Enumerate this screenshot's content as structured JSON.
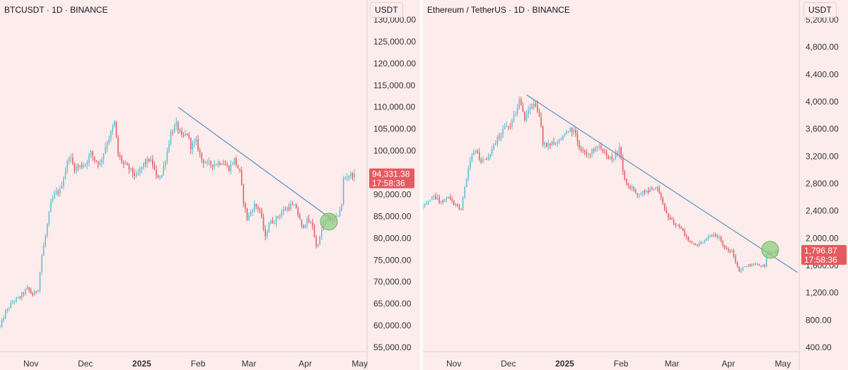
{
  "chart_data": [
    {
      "type": "candlestick",
      "title": "BTCUSDT · 1D · BINANCE",
      "ylabel": "USDT",
      "ylim": [
        50000,
        133000
      ],
      "yticks": [
        {
          "v": 130000,
          "label": "130,000.00"
        },
        {
          "v": 125000,
          "label": "125,000.00"
        },
        {
          "v": 120000,
          "label": "120,000.00"
        },
        {
          "v": 115000,
          "label": "115,000.00"
        },
        {
          "v": 110000,
          "label": "110,000.00"
        },
        {
          "v": 105000,
          "label": "105,000.00"
        },
        {
          "v": 100000,
          "label": "100,000.00"
        },
        {
          "v": 95000,
          "label": "95,000.00"
        },
        {
          "v": 90000,
          "label": "90,000.00"
        },
        {
          "v": 85000,
          "label": "85,000.00"
        },
        {
          "v": 80000,
          "label": "80,000.00"
        },
        {
          "v": 75000,
          "label": "75,000.00"
        },
        {
          "v": 70000,
          "label": "70,000.00"
        },
        {
          "v": 65000,
          "label": "65,000.00"
        },
        {
          "v": 60000,
          "label": "60,000.00"
        },
        {
          "v": 55000,
          "label": "55,000.00"
        }
      ],
      "x_start": "2024-10-15",
      "x_end": "2025-05-05",
      "xticks": [
        {
          "date": "2024-11-01",
          "label": "Nov",
          "bold": false
        },
        {
          "date": "2024-12-01",
          "label": "Dec",
          "bold": false
        },
        {
          "date": "2025-01-01",
          "label": "2025",
          "bold": true
        },
        {
          "date": "2025-02-01",
          "label": "Feb",
          "bold": false
        },
        {
          "date": "2025-03-01",
          "label": "Mar",
          "bold": false
        },
        {
          "date": "2025-04-01",
          "label": "Apr",
          "bold": false
        },
        {
          "date": "2025-05-01",
          "label": "May",
          "bold": false
        }
      ],
      "path": [
        [
          "2024-10-15",
          59800
        ],
        [
          "2024-10-18",
          63000
        ],
        [
          "2024-10-22",
          65500
        ],
        [
          "2024-10-26",
          66500
        ],
        [
          "2024-10-30",
          68500
        ],
        [
          "2024-11-02",
          67000
        ],
        [
          "2024-11-05",
          68500
        ],
        [
          "2024-11-07",
          76000
        ],
        [
          "2024-11-09",
          80500
        ],
        [
          "2024-11-12",
          88000
        ],
        [
          "2024-11-14",
          90000
        ],
        [
          "2024-11-17",
          91000
        ],
        [
          "2024-11-20",
          95500
        ],
        [
          "2024-11-22",
          99000
        ],
        [
          "2024-11-25",
          96000
        ],
        [
          "2024-11-28",
          96500
        ],
        [
          "2024-12-01",
          97000
        ],
        [
          "2024-12-04",
          99500
        ],
        [
          "2024-12-06",
          98000
        ],
        [
          "2024-12-09",
          97000
        ],
        [
          "2024-12-12",
          101000
        ],
        [
          "2024-12-15",
          104000
        ],
        [
          "2024-12-17",
          106500
        ],
        [
          "2024-12-19",
          99000
        ],
        [
          "2024-12-22",
          97000
        ],
        [
          "2024-12-26",
          95500
        ],
        [
          "2024-12-29",
          94000
        ],
        [
          "2025-01-02",
          97000
        ],
        [
          "2025-01-05",
          98000
        ],
        [
          "2025-01-07",
          97000
        ],
        [
          "2025-01-09",
          94000
        ],
        [
          "2025-01-12",
          94500
        ],
        [
          "2025-01-15",
          100000
        ],
        [
          "2025-01-17",
          104000
        ],
        [
          "2025-01-20",
          106000
        ],
        [
          "2025-01-23",
          103000
        ],
        [
          "2025-01-26",
          104000
        ],
        [
          "2025-01-28",
          101000
        ],
        [
          "2025-01-31",
          102000
        ],
        [
          "2025-02-03",
          98000
        ],
        [
          "2025-02-06",
          97000
        ],
        [
          "2025-02-10",
          97000
        ],
        [
          "2025-02-14",
          97500
        ],
        [
          "2025-02-18",
          96000
        ],
        [
          "2025-02-21",
          98000
        ],
        [
          "2025-02-24",
          95000
        ],
        [
          "2025-02-26",
          88500
        ],
        [
          "2025-02-28",
          84500
        ],
        [
          "2025-03-02",
          86000
        ],
        [
          "2025-03-04",
          87500
        ],
        [
          "2025-03-07",
          86500
        ],
        [
          "2025-03-10",
          80000
        ],
        [
          "2025-03-12",
          83500
        ],
        [
          "2025-03-15",
          84000
        ],
        [
          "2025-03-19",
          86000
        ],
        [
          "2025-03-24",
          87500
        ],
        [
          "2025-03-27",
          87000
        ],
        [
          "2025-03-30",
          82500
        ],
        [
          "2025-04-02",
          84000
        ],
        [
          "2025-04-05",
          83000
        ],
        [
          "2025-04-07",
          78000
        ],
        [
          "2025-04-09",
          80000
        ],
        [
          "2025-04-11",
          83500
        ],
        [
          "2025-04-14",
          84500
        ],
        [
          "2025-04-18",
          84500
        ],
        [
          "2025-04-21",
          87500
        ],
        [
          "2025-04-22",
          93500
        ],
        [
          "2025-04-25",
          94500
        ],
        [
          "2025-04-28",
          94300
        ]
      ],
      "current_price": 94331.38,
      "current_price_label": "94,331.38",
      "countdown": "17:58:36",
      "trendline": [
        [
          "2025-01-21",
          110000
        ],
        [
          "2025-04-15",
          84500
        ]
      ],
      "marker": {
        "date": "2025-04-14",
        "value": 83800
      },
      "colors": {
        "up": "#5bbfcf",
        "down": "#e35a62",
        "trend": "#5a8fbf",
        "marker": "#8ccf7f",
        "label": "#e45a5f"
      }
    },
    {
      "type": "candlestick",
      "title": "Ethereum / TetherUS · 1D · BINANCE",
      "ylabel": "USDT",
      "ylim": [
        200,
        5500
      ],
      "yticks": [
        {
          "v": 5200,
          "label": "5,200.00"
        },
        {
          "v": 4800,
          "label": "4,800.00"
        },
        {
          "v": 4400,
          "label": "4,400.00"
        },
        {
          "v": 4000,
          "label": "4,000.00"
        },
        {
          "v": 3600,
          "label": "3,600.00"
        },
        {
          "v": 3200,
          "label": "3,200.00"
        },
        {
          "v": 2800,
          "label": "2,800.00"
        },
        {
          "v": 2400,
          "label": "2,400.00"
        },
        {
          "v": 2000,
          "label": "2,000.00"
        },
        {
          "v": 1600,
          "label": "1,600.00"
        },
        {
          "v": 1200,
          "label": "1,200.00"
        },
        {
          "v": 800,
          "label": "800.00"
        },
        {
          "v": 400,
          "label": "400.00"
        }
      ],
      "x_start": "2024-10-15",
      "x_end": "2025-05-10",
      "xticks": [
        {
          "date": "2024-11-01",
          "label": "Nov",
          "bold": false
        },
        {
          "date": "2024-12-01",
          "label": "Dec",
          "bold": false
        },
        {
          "date": "2025-01-01",
          "label": "2025",
          "bold": true
        },
        {
          "date": "2025-02-01",
          "label": "Feb",
          "bold": false
        },
        {
          "date": "2025-03-01",
          "label": "Mar",
          "bold": false
        },
        {
          "date": "2025-04-01",
          "label": "Apr",
          "bold": false
        },
        {
          "date": "2025-05-01",
          "label": "May",
          "bold": false
        }
      ],
      "path": [
        [
          "2024-10-15",
          2450
        ],
        [
          "2024-10-18",
          2550
        ],
        [
          "2024-10-21",
          2620
        ],
        [
          "2024-10-25",
          2520
        ],
        [
          "2024-10-29",
          2600
        ],
        [
          "2024-11-02",
          2480
        ],
        [
          "2024-11-05",
          2420
        ],
        [
          "2024-11-07",
          2750
        ],
        [
          "2024-11-10",
          3150
        ],
        [
          "2024-11-13",
          3300
        ],
        [
          "2024-11-16",
          3100
        ],
        [
          "2024-11-19",
          3150
        ],
        [
          "2024-11-22",
          3300
        ],
        [
          "2024-11-25",
          3450
        ],
        [
          "2024-11-28",
          3600
        ],
        [
          "2024-12-02",
          3650
        ],
        [
          "2024-12-05",
          3850
        ],
        [
          "2024-12-07",
          4000
        ],
        [
          "2024-12-10",
          3750
        ],
        [
          "2024-12-13",
          3900
        ],
        [
          "2024-12-16",
          3950
        ],
        [
          "2024-12-18",
          3800
        ],
        [
          "2024-12-20",
          3400
        ],
        [
          "2024-12-23",
          3350
        ],
        [
          "2024-12-26",
          3400
        ],
        [
          "2024-12-30",
          3450
        ],
        [
          "2025-01-02",
          3550
        ],
        [
          "2025-01-06",
          3600
        ],
        [
          "2025-01-09",
          3300
        ],
        [
          "2025-01-13",
          3200
        ],
        [
          "2025-01-16",
          3300
        ],
        [
          "2025-01-20",
          3350
        ],
        [
          "2025-01-23",
          3250
        ],
        [
          "2025-01-27",
          3150
        ],
        [
          "2025-01-31",
          3300
        ],
        [
          "2025-02-03",
          2850
        ],
        [
          "2025-02-06",
          2750
        ],
        [
          "2025-02-10",
          2650
        ],
        [
          "2025-02-14",
          2700
        ],
        [
          "2025-02-18",
          2700
        ],
        [
          "2025-02-21",
          2750
        ],
        [
          "2025-02-24",
          2500
        ],
        [
          "2025-02-27",
          2300
        ],
        [
          "2025-03-03",
          2200
        ],
        [
          "2025-03-06",
          2150
        ],
        [
          "2025-03-10",
          1950
        ],
        [
          "2025-03-13",
          1900
        ],
        [
          "2025-03-17",
          1920
        ],
        [
          "2025-03-20",
          2000
        ],
        [
          "2025-03-24",
          2050
        ],
        [
          "2025-03-27",
          2000
        ],
        [
          "2025-03-31",
          1830
        ],
        [
          "2025-04-03",
          1800
        ],
        [
          "2025-04-07",
          1500
        ],
        [
          "2025-04-09",
          1580
        ],
        [
          "2025-04-12",
          1600
        ],
        [
          "2025-04-15",
          1620
        ],
        [
          "2025-04-18",
          1600
        ],
        [
          "2025-04-21",
          1600
        ],
        [
          "2025-04-22",
          1780
        ],
        [
          "2025-04-25",
          1790
        ],
        [
          "2025-04-28",
          1797
        ]
      ],
      "current_price": 1796.87,
      "current_price_label": "1,796.87",
      "countdown": "17:58:36",
      "trendline": [
        [
          "2024-12-11",
          4100
        ],
        [
          "2025-05-09",
          1500
        ]
      ],
      "marker": {
        "date": "2025-04-24",
        "value": 1830
      },
      "colors": {
        "up": "#5bbfcf",
        "down": "#e35a62",
        "trend": "#5a8fbf",
        "marker": "#8ccf7f",
        "label": "#e45a5f"
      }
    }
  ]
}
